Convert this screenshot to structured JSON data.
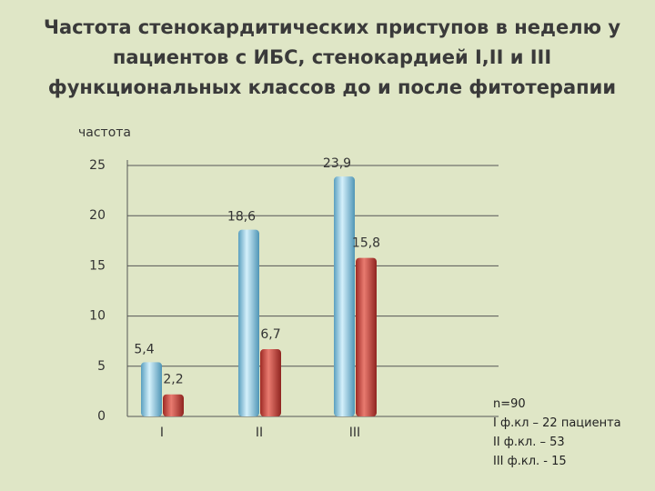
{
  "chart_data": {
    "type": "bar",
    "title": "Частота стенокардитических приступов в неделю у пациентов с ИБС, стенокардией I,II и III функциональных классов до и после фитотерапии",
    "y_label": "частота",
    "categories": [
      "I",
      "II",
      "III"
    ],
    "series": [
      {
        "color": "#7cc3de",
        "values": [
          5.4,
          18.6,
          23.9
        ],
        "value_labels": [
          "5,4",
          "18,6",
          "23,9"
        ]
      },
      {
        "color": "#c8453d",
        "values": [
          2.2,
          6.7,
          15.8
        ],
        "value_labels": [
          "2,2",
          "6,7",
          "15,8"
        ]
      }
    ],
    "ylim": [
      0,
      25
    ],
    "yticks": [
      0,
      5,
      10,
      15,
      20,
      25
    ],
    "grid": true,
    "notes": [
      "n=90",
      "I ф.кл – 22 пациента",
      "II ф.кл. – 53",
      "III ф.кл. - 15"
    ]
  }
}
